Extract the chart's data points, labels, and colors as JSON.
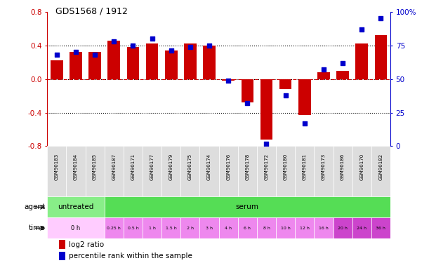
{
  "title": "GDS1568 / 1912",
  "samples": [
    "GSM90183",
    "GSM90184",
    "GSM90185",
    "GSM90187",
    "GSM90171",
    "GSM90177",
    "GSM90179",
    "GSM90175",
    "GSM90174",
    "GSM90176",
    "GSM90178",
    "GSM90172",
    "GSM90180",
    "GSM90181",
    "GSM90173",
    "GSM90186",
    "GSM90170",
    "GSM90182"
  ],
  "log2_ratio": [
    0.22,
    0.32,
    0.32,
    0.46,
    0.38,
    0.42,
    0.34,
    0.42,
    0.4,
    -0.02,
    -0.28,
    -0.72,
    -0.12,
    -0.43,
    0.08,
    0.1,
    0.42,
    0.52
  ],
  "percentile": [
    68,
    70,
    68,
    78,
    75,
    80,
    71,
    74,
    75,
    49,
    32,
    2,
    38,
    17,
    57,
    62,
    87,
    95
  ],
  "bar_color": "#cc0000",
  "dot_color": "#0000cc",
  "agent_groups": [
    {
      "label": "untreated",
      "start": 0,
      "end": 3,
      "color": "#88ee88"
    },
    {
      "label": "serum",
      "start": 3,
      "end": 18,
      "color": "#55dd55"
    }
  ],
  "time_spans": [
    {
      "label": "0 h",
      "start": 0,
      "end": 3,
      "color": "#ffccff"
    },
    {
      "label": "0.25 h",
      "start": 3,
      "end": 4,
      "color": "#ee88ee"
    },
    {
      "label": "0.5 h",
      "start": 4,
      "end": 5,
      "color": "#ee88ee"
    },
    {
      "label": "1 h",
      "start": 5,
      "end": 6,
      "color": "#ee88ee"
    },
    {
      "label": "1.5 h",
      "start": 6,
      "end": 7,
      "color": "#ee88ee"
    },
    {
      "label": "2 h",
      "start": 7,
      "end": 8,
      "color": "#ee88ee"
    },
    {
      "label": "3 h",
      "start": 8,
      "end": 9,
      "color": "#ee88ee"
    },
    {
      "label": "4 h",
      "start": 9,
      "end": 10,
      "color": "#ee88ee"
    },
    {
      "label": "6 h",
      "start": 10,
      "end": 11,
      "color": "#ee88ee"
    },
    {
      "label": "8 h",
      "start": 11,
      "end": 12,
      "color": "#ee88ee"
    },
    {
      "label": "10 h",
      "start": 12,
      "end": 13,
      "color": "#ee88ee"
    },
    {
      "label": "12 h",
      "start": 13,
      "end": 14,
      "color": "#ee88ee"
    },
    {
      "label": "16 h",
      "start": 14,
      "end": 15,
      "color": "#ee88ee"
    },
    {
      "label": "20 h",
      "start": 15,
      "end": 16,
      "color": "#cc44cc"
    },
    {
      "label": "24 h",
      "start": 16,
      "end": 17,
      "color": "#cc44cc"
    },
    {
      "label": "36 h",
      "start": 17,
      "end": 18,
      "color": "#cc44cc"
    }
  ],
  "ylim": [
    -0.8,
    0.8
  ],
  "yticks_left": [
    -0.8,
    -0.4,
    0.0,
    0.4,
    0.8
  ],
  "yticks_right_vals": [
    0,
    25,
    50,
    75,
    100
  ],
  "legend_bar_label": "log2 ratio",
  "legend_dot_label": "percentile rank within the sample",
  "sample_bg_color": "#dddddd",
  "background_color": "#ffffff"
}
